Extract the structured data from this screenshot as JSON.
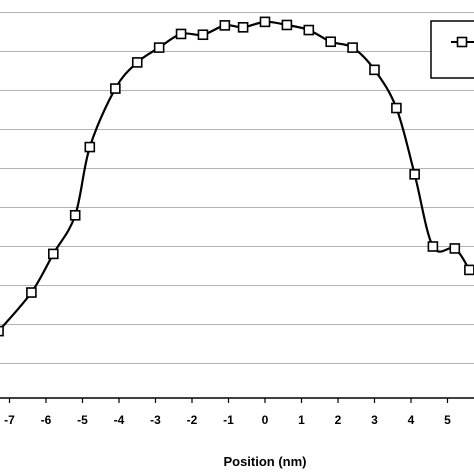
{
  "chart_data": {
    "type": "line",
    "title": "",
    "xlabel": "Position (nm)",
    "ylabel": "",
    "x_ticks": [
      "-7",
      "-6",
      "-5",
      "-4",
      "-3",
      "-2",
      "-1",
      "0",
      "1",
      "2",
      "3",
      "4",
      "5"
    ],
    "xlim": [
      -7.3,
      5.6
    ],
    "grid": true,
    "legend": "top-right",
    "series": [
      {
        "marker": "open-square",
        "color": "#000000",
        "points": [
          {
            "x": -7.3,
            "y": 0.83
          },
          {
            "x": -6.4,
            "y": 1.82
          },
          {
            "x": -5.8,
            "y": 2.81
          },
          {
            "x": -5.2,
            "y": 3.8
          },
          {
            "x": -4.8,
            "y": 5.55
          },
          {
            "x": -4.1,
            "y": 7.05
          },
          {
            "x": -3.5,
            "y": 7.72
          },
          {
            "x": -2.9,
            "y": 8.1
          },
          {
            "x": -2.3,
            "y": 8.45
          },
          {
            "x": -1.7,
            "y": 8.43
          },
          {
            "x": -1.1,
            "y": 8.67
          },
          {
            "x": -0.6,
            "y": 8.62
          },
          {
            "x": 0.0,
            "y": 8.76
          },
          {
            "x": 0.6,
            "y": 8.68
          },
          {
            "x": 1.2,
            "y": 8.55
          },
          {
            "x": 1.8,
            "y": 8.25
          },
          {
            "x": 2.4,
            "y": 8.1
          },
          {
            "x": 3.0,
            "y": 7.53
          },
          {
            "x": 3.6,
            "y": 6.55
          },
          {
            "x": 4.1,
            "y": 4.85
          },
          {
            "x": 4.6,
            "y": 3.0
          },
          {
            "x": 5.2,
            "y": 2.95
          },
          {
            "x": 5.6,
            "y": 2.4
          }
        ]
      }
    ]
  }
}
